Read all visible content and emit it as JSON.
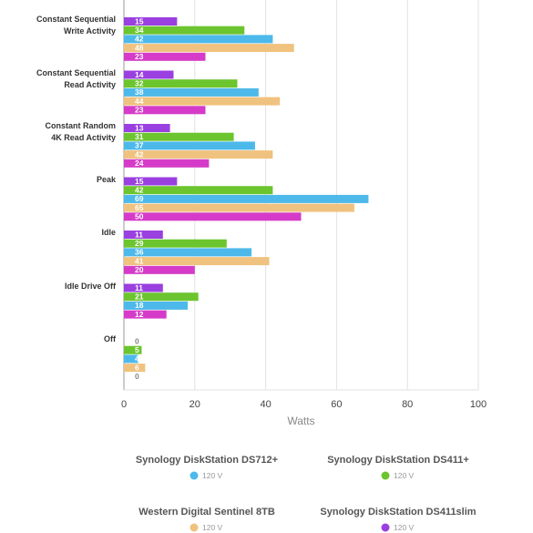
{
  "chart_data": {
    "type": "hbar",
    "categories": [
      "Constant Sequential\nWrite Activity",
      "Constant Sequential\nRead Activity",
      "Constant Random\n4K Read Activity",
      "Peak",
      "Idle",
      "Idle Drive Off",
      "Off"
    ],
    "series": [
      {
        "name": "Synology DiskStation DS411slim",
        "voltage": "120 V",
        "color": "#9a3fe0",
        "values": [
          15,
          14,
          13,
          15,
          11,
          11,
          0
        ]
      },
      {
        "name": "Synology DiskStation DS411+",
        "voltage": "120 V",
        "color": "#6cc52f",
        "values": [
          34,
          32,
          31,
          42,
          29,
          21,
          5
        ]
      },
      {
        "name": "Synology DiskStation DS712+",
        "voltage": "120 V",
        "color": "#4db9ea",
        "values": [
          42,
          38,
          37,
          69,
          36,
          18,
          4
        ]
      },
      {
        "name": "Western Digital Sentinel 8TB",
        "voltage": "120 V",
        "color": "#f0c27f",
        "values": [
          48,
          44,
          42,
          65,
          41,
          null,
          6
        ]
      },
      {
        "color": "#d53bc8",
        "values": [
          23,
          23,
          24,
          50,
          20,
          12,
          0
        ]
      }
    ],
    "xlabel": "Watts",
    "xlim": [
      0,
      100
    ],
    "xticks": [
      0,
      20,
      40,
      60,
      80,
      100
    ],
    "grid": true
  }
}
